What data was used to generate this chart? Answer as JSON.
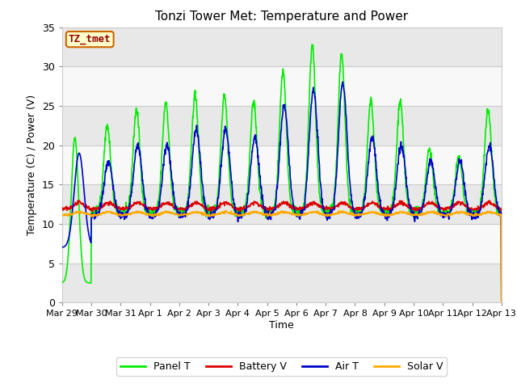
{
  "title": "Tonzi Tower Met: Temperature and Power",
  "xlabel": "Time",
  "ylabel": "Temperature (C) / Power (V)",
  "ylim": [
    0,
    35
  ],
  "fig_facecolor": "#ffffff",
  "plot_bg_bands": [
    {
      "ymin": 0,
      "ymax": 5,
      "color": "#e8e8e8"
    },
    {
      "ymin": 5,
      "ymax": 10,
      "color": "#f8f8f8"
    },
    {
      "ymin": 10,
      "ymax": 15,
      "color": "#e8e8e8"
    },
    {
      "ymin": 15,
      "ymax": 20,
      "color": "#f8f8f8"
    },
    {
      "ymin": 20,
      "ymax": 25,
      "color": "#e8e8e8"
    },
    {
      "ymin": 25,
      "ymax": 30,
      "color": "#f8f8f8"
    },
    {
      "ymin": 30,
      "ymax": 35,
      "color": "#e8e8e8"
    }
  ],
  "label_box_text": "TZ_tmet",
  "label_box_color": "#ffffcc",
  "label_box_border": "#cc6600",
  "label_box_text_color": "#990000",
  "xtick_labels": [
    "Mar 29",
    "Mar 30",
    "Mar 31",
    "Apr 1",
    "Apr 2",
    "Apr 3",
    "Apr 4",
    "Apr 5",
    "Apr 6",
    "Apr 7",
    "Apr 8",
    "Apr 9",
    "Apr 10",
    "Apr 11",
    "Apr 12",
    "Apr 13"
  ],
  "xtick_positions": [
    0,
    1,
    2,
    3,
    4,
    5,
    6,
    7,
    8,
    9,
    10,
    11,
    12,
    13,
    14,
    15
  ],
  "series": {
    "Panel T": {
      "color": "#00ee00",
      "linewidth": 1.2
    },
    "Battery V": {
      "color": "#dd0000",
      "linewidth": 1.2
    },
    "Air T": {
      "color": "#0000cc",
      "linewidth": 1.2
    },
    "Solar V": {
      "color": "#ffaa00",
      "linewidth": 1.2
    }
  },
  "grid_color": "#cccccc",
  "yticks": [
    0,
    5,
    10,
    15,
    20,
    25,
    30,
    35
  ]
}
